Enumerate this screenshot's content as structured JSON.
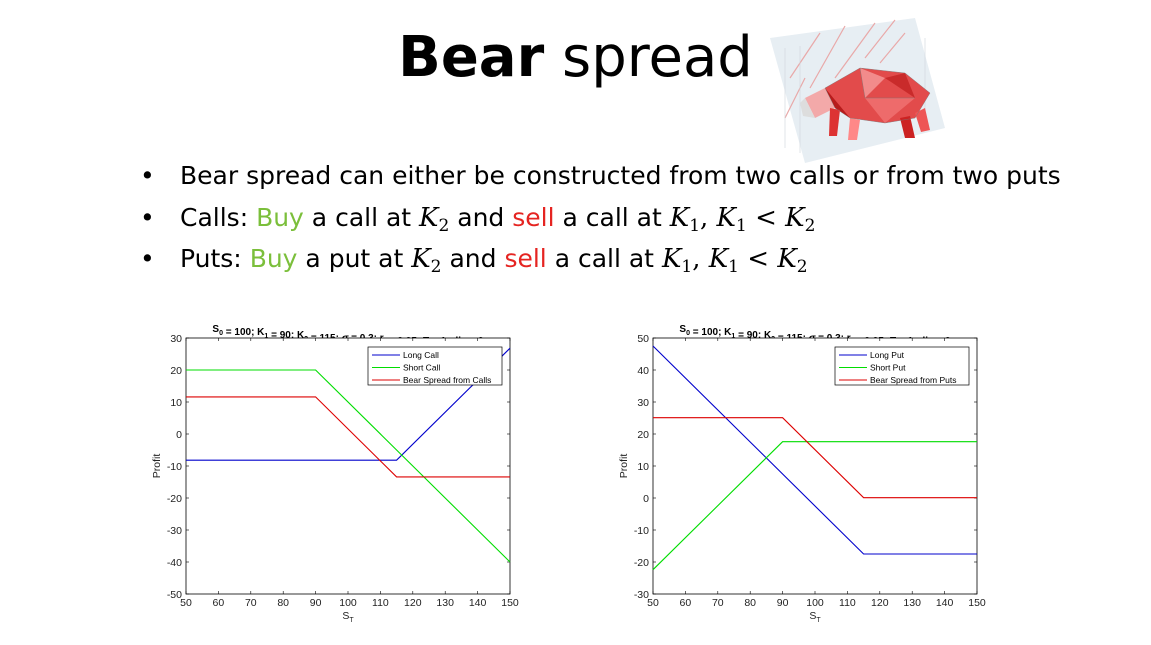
{
  "slide": {
    "title_bold": "Bear",
    "title_rest": " spread",
    "bullet_glyph": "•",
    "bullets": {
      "b1": "Bear spread can either be constructed from two calls or from two puts",
      "b2": {
        "prefix": "Calls: ",
        "buy": "Buy",
        "mid1": " a call at ",
        "k2": "K",
        "k2_sub": "2",
        "mid2": " and ",
        "sell": "sell",
        "mid3": " a call at ",
        "k1": "K",
        "k1_sub": "1",
        "comma": ",",
        "k1b": "K",
        "k1b_sub": "1",
        "lt": "<",
        "k2b": "K",
        "k2b_sub": "2"
      },
      "b3": {
        "prefix": "Puts: ",
        "buy": "Buy",
        "mid1": " a put at ",
        "k2": "K",
        "k2_sub": "2",
        "mid2": " and ",
        "sell": "sell",
        "mid3": " a call at ",
        "k1": "K",
        "k1_sub": "1",
        "comma": ",",
        "k1b": "K",
        "k1b_sub": "1",
        "lt": "<",
        "k2b": "K",
        "k2b_sub": "2"
      }
    },
    "image_icon": "bear-polygon-image",
    "colors": {
      "buy": "#7bbf3b",
      "sell": "#e52421",
      "blue": "#0000cc",
      "green": "#00dd00",
      "red": "#dd0000"
    }
  },
  "chart_data": [
    {
      "type": "line",
      "title": {
        "parts": [
          {
            "t": "S"
          },
          {
            "t": "0",
            "sub": true
          },
          {
            "t": " = 100; K"
          },
          {
            "t": "1",
            "sub": true
          },
          {
            "t": " = 90; K"
          },
          {
            "t": "2",
            "sub": true
          },
          {
            "t": " = 115; "
          },
          {
            "t": "σ",
            "italic": true
          },
          {
            "t": " = 0.3; r"
          },
          {
            "t": "f",
            "sub": true
          },
          {
            "t": " = 0.05; T = 1; div = 0"
          }
        ]
      },
      "xlabel": "S",
      "xlabel_sub": "T",
      "ylabel": "Profit",
      "xlim": [
        50,
        150
      ],
      "ylim": [
        -50,
        30
      ],
      "xticks": [
        50,
        60,
        70,
        80,
        90,
        100,
        110,
        120,
        130,
        140,
        150
      ],
      "yticks": [
        -50,
        -40,
        -30,
        -20,
        -10,
        0,
        10,
        20,
        30
      ],
      "legend_position": "top-right",
      "series": [
        {
          "name": "Long Call",
          "color": "#0000cc",
          "x": [
            50,
            90,
            115,
            150
          ],
          "y": [
            -8.2,
            -8.2,
            -8.2,
            26.8
          ]
        },
        {
          "name": "Short Call",
          "color": "#00dd00",
          "x": [
            50,
            90,
            150
          ],
          "y": [
            20.0,
            20.0,
            -40.0
          ]
        },
        {
          "name": "Bear Spread from Calls",
          "color": "#dd0000",
          "x": [
            50,
            90,
            115,
            150
          ],
          "y": [
            11.6,
            11.6,
            -13.4,
            -13.4
          ]
        }
      ]
    },
    {
      "type": "line",
      "title": {
        "parts": [
          {
            "t": "S"
          },
          {
            "t": "0",
            "sub": true
          },
          {
            "t": " = 100; K"
          },
          {
            "t": "1",
            "sub": true
          },
          {
            "t": " = 90; K"
          },
          {
            "t": "2",
            "sub": true
          },
          {
            "t": " = 115; "
          },
          {
            "t": "σ",
            "italic": true
          },
          {
            "t": " = 0.3; r"
          },
          {
            "t": "f",
            "sub": true
          },
          {
            "t": " = 0.05; T = 1; div = 0"
          }
        ]
      },
      "xlabel": "S",
      "xlabel_sub": "T",
      "ylabel": "Profit",
      "xlim": [
        50,
        150
      ],
      "ylim": [
        -30,
        50
      ],
      "xticks": [
        50,
        60,
        70,
        80,
        90,
        100,
        110,
        120,
        130,
        140,
        150
      ],
      "yticks": [
        -30,
        -20,
        -10,
        0,
        10,
        20,
        30,
        40,
        50
      ],
      "legend_position": "top-right",
      "series": [
        {
          "name": "Long Put",
          "color": "#0000cc",
          "x": [
            50,
            115,
            150
          ],
          "y": [
            47.5,
            -17.5,
            -17.5
          ]
        },
        {
          "name": "Short Put",
          "color": "#00dd00",
          "x": [
            50,
            90,
            150
          ],
          "y": [
            -22.4,
            17.6,
            17.6
          ]
        },
        {
          "name": "Bear Spread from Puts",
          "color": "#dd0000",
          "x": [
            50,
            90,
            115,
            150
          ],
          "y": [
            25.1,
            25.1,
            0.1,
            0.1
          ]
        }
      ]
    }
  ]
}
